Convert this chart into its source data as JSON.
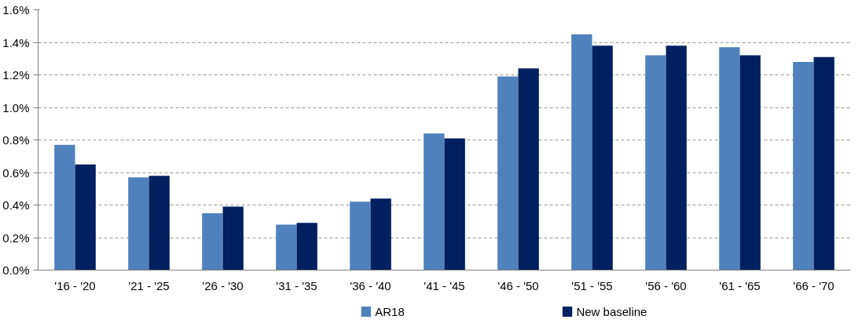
{
  "chart_data": {
    "type": "bar",
    "categories": [
      "'16 - '20",
      "'21 - '25",
      "'26 - '30",
      "'31 - '35",
      "'36 - '40",
      "'41 - '45",
      "'46 - '50",
      "'51 - '55",
      "'56 - '60",
      "'61 - '65",
      "'66 - '70"
    ],
    "series": [
      {
        "name": "AR18",
        "color": "#4f81bd",
        "values": [
          0.77,
          0.57,
          0.35,
          0.28,
          0.42,
          0.84,
          1.19,
          1.45,
          1.32,
          1.37,
          1.28
        ]
      },
      {
        "name": "New baseline",
        "color": "#002060",
        "values": [
          0.65,
          0.58,
          0.39,
          0.29,
          0.44,
          0.81,
          1.24,
          1.38,
          1.38,
          1.32,
          1.31
        ]
      }
    ],
    "ylim": [
      0,
      1.6
    ],
    "yticks": [
      {
        "value": 0,
        "label": "0.0%"
      },
      {
        "value": 0.2,
        "label": "0.2%"
      },
      {
        "value": 0.4,
        "label": "0.4%"
      },
      {
        "value": 0.6,
        "label": "0.6%"
      },
      {
        "value": 0.8,
        "label": "0.8%"
      },
      {
        "value": 1.0,
        "label": "1.0%"
      },
      {
        "value": 1.2,
        "label": "1.2%"
      },
      {
        "value": 1.4,
        "label": "1.4%"
      },
      {
        "value": 1.6,
        "label": "1.6%"
      }
    ],
    "grid": "y",
    "legend": "bottom"
  }
}
